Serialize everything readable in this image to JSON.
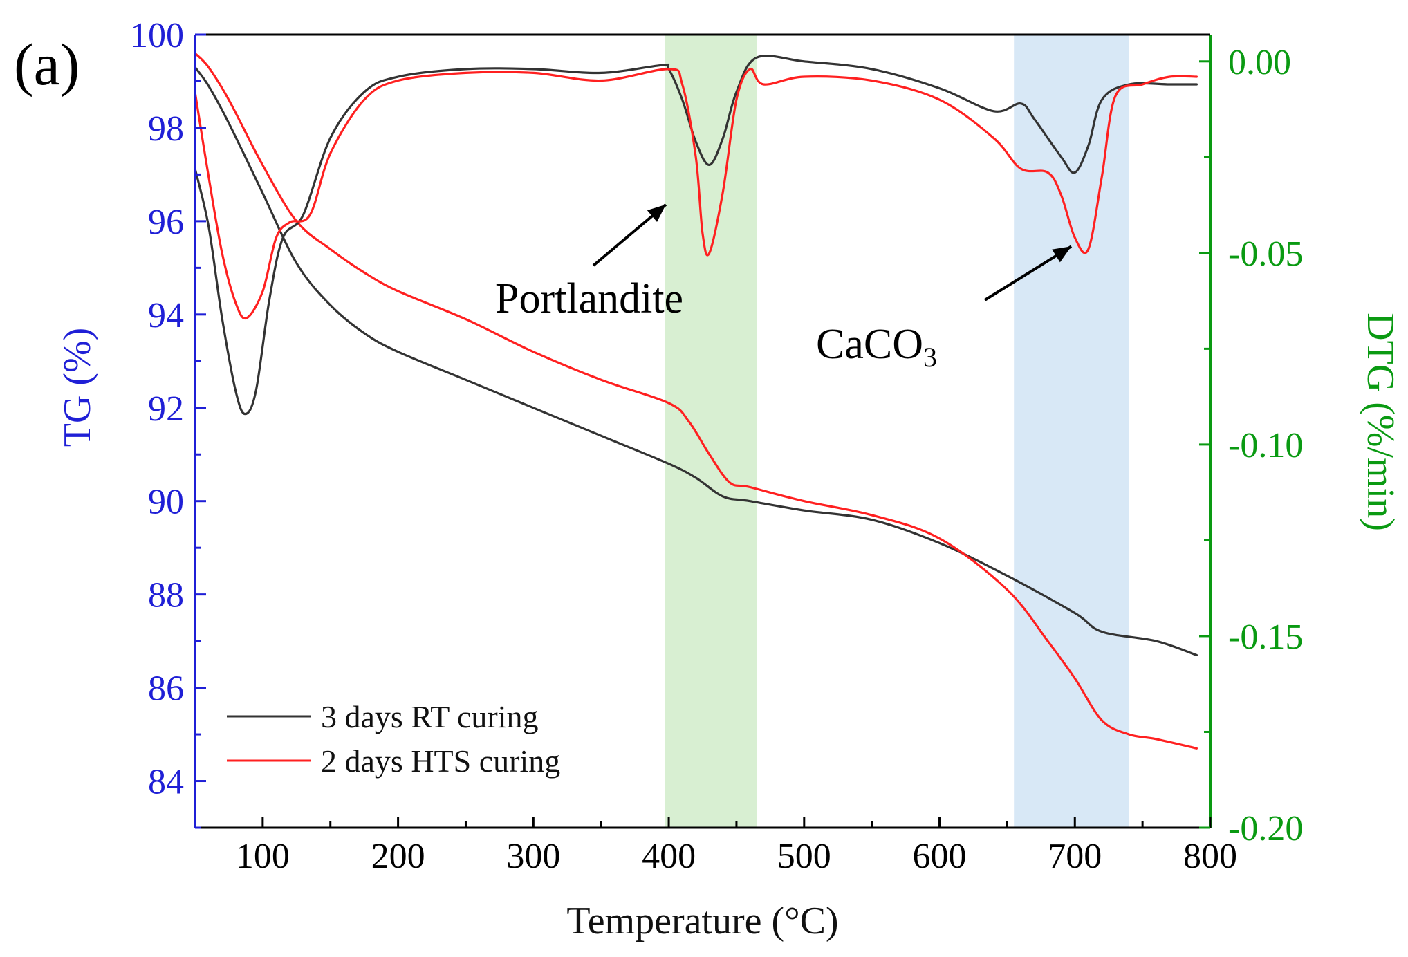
{
  "chart_data": {
    "type": "line",
    "panel_label": "(a)",
    "xlabel": "Temperature (°C)",
    "ylabel_left": "TG (%)",
    "ylabel_right": "DTG (%/min)",
    "xlim": [
      50,
      800
    ],
    "ylim_left": [
      83,
      100
    ],
    "ylim_right": [
      -0.2,
      0.007
    ],
    "x_ticks": [
      100,
      200,
      300,
      400,
      500,
      600,
      700,
      800
    ],
    "y_ticks_left": [
      84,
      86,
      88,
      90,
      92,
      94,
      96,
      98,
      100
    ],
    "y_ticks_right": [
      0.0,
      -0.05,
      -0.1,
      -0.15,
      -0.2
    ],
    "y_tick_labels_right": [
      "0.00",
      "-0.05",
      "-0.10",
      "-0.15",
      "-0.20"
    ],
    "colors": {
      "left_axis": "#1f1fd6",
      "right_axis": "#0a9a12",
      "rt_curing": "#333333",
      "hts_curing": "#ff2020",
      "band_portlandite": "#d8efd2",
      "band_caco3": "#d8e8f6"
    },
    "shaded_regions": [
      {
        "name": "portlandite-band",
        "x_start": 397,
        "x_end": 465,
        "color": "#d8efd2"
      },
      {
        "name": "caco3-band",
        "x_start": 655,
        "x_end": 740,
        "color": "#d8e8f6"
      }
    ],
    "annotations": [
      {
        "label": "Portlandite",
        "text": "Portlandite",
        "arrow_to_x": 405,
        "arrow_to_dtg": -0.037
      },
      {
        "label": "CaCO3",
        "text_main": "CaCO",
        "text_sub": "3",
        "arrow_to_x": 680,
        "arrow_to_dtg": -0.049
      }
    ],
    "legend": [
      "3 days RT curing",
      "2 days HTS curing"
    ],
    "series": [
      {
        "name": "3 days RT curing",
        "kind": "TG",
        "axis": "left",
        "color": "#333333",
        "x": [
          50,
          60,
          75,
          100,
          125,
          150,
          175,
          200,
          250,
          300,
          350,
          400,
          420,
          440,
          460,
          500,
          550,
          600,
          650,
          700,
          720,
          760,
          790
        ],
        "y": [
          99.3,
          98.9,
          98.1,
          96.6,
          95.1,
          94.2,
          93.6,
          93.2,
          92.6,
          92.0,
          91.4,
          90.8,
          90.5,
          90.1,
          90.0,
          89.8,
          89.6,
          89.1,
          88.4,
          87.6,
          87.2,
          87.0,
          86.7
        ]
      },
      {
        "name": "2 days HTS curing",
        "kind": "TG",
        "axis": "left",
        "color": "#ff2020",
        "x": [
          50,
          60,
          75,
          100,
          125,
          150,
          175,
          200,
          250,
          300,
          350,
          400,
          415,
          430,
          445,
          460,
          500,
          550,
          600,
          650,
          680,
          700,
          720,
          740,
          760,
          790
        ],
        "y": [
          99.6,
          99.3,
          98.6,
          97.2,
          96.0,
          95.4,
          94.9,
          94.5,
          93.9,
          93.2,
          92.6,
          92.1,
          91.7,
          91.0,
          90.4,
          90.3,
          90.0,
          89.7,
          89.2,
          88.1,
          87.0,
          86.2,
          85.3,
          85.0,
          84.9,
          84.7
        ]
      },
      {
        "name": "3 days RT curing",
        "kind": "DTG",
        "axis": "right",
        "color": "#333333",
        "x": [
          50,
          60,
          70,
          80,
          87,
          95,
          105,
          115,
          130,
          150,
          175,
          200,
          250,
          300,
          350,
          395,
          400,
          410,
          420,
          430,
          440,
          450,
          465,
          500,
          550,
          600,
          640,
          660,
          670,
          690,
          700,
          710,
          720,
          740,
          770,
          790
        ],
        "y": [
          -0.028,
          -0.043,
          -0.067,
          -0.086,
          -0.092,
          -0.086,
          -0.062,
          -0.046,
          -0.04,
          -0.02,
          -0.008,
          -0.004,
          -0.002,
          -0.002,
          -0.003,
          -0.001,
          -0.002,
          -0.01,
          -0.021,
          -0.027,
          -0.02,
          -0.008,
          0.001,
          0.0,
          -0.002,
          -0.007,
          -0.013,
          -0.011,
          -0.015,
          -0.025,
          -0.029,
          -0.022,
          -0.01,
          -0.006,
          -0.006,
          -0.006
        ]
      },
      {
        "name": "2 days HTS curing",
        "kind": "DTG",
        "axis": "right",
        "color": "#ff2020",
        "x": [
          50,
          60,
          70,
          80,
          88,
          100,
          110,
          120,
          135,
          150,
          175,
          200,
          250,
          300,
          350,
          400,
          410,
          420,
          425,
          430,
          440,
          450,
          460,
          470,
          500,
          550,
          600,
          640,
          660,
          680,
          690,
          700,
          710,
          720,
          730,
          750,
          770,
          790
        ],
        "y": [
          -0.008,
          -0.03,
          -0.05,
          -0.063,
          -0.067,
          -0.06,
          -0.046,
          -0.042,
          -0.04,
          -0.024,
          -0.01,
          -0.005,
          -0.003,
          -0.003,
          -0.005,
          -0.002,
          -0.006,
          -0.025,
          -0.045,
          -0.05,
          -0.034,
          -0.01,
          -0.002,
          -0.006,
          -0.004,
          -0.005,
          -0.01,
          -0.02,
          -0.028,
          -0.029,
          -0.035,
          -0.046,
          -0.049,
          -0.03,
          -0.009,
          -0.006,
          -0.004,
          -0.004
        ]
      }
    ]
  }
}
